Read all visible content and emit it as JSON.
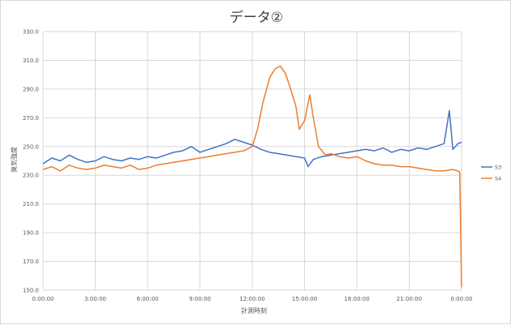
{
  "chart_data": {
    "type": "line",
    "title": "データ②",
    "xlabel": "計測時刻",
    "ylabel": "臭気強度",
    "ylim": [
      150.0,
      330.0
    ],
    "yticks": [
      "150.0",
      "170.0",
      "190.0",
      "210.0",
      "230.0",
      "250.0",
      "270.0",
      "290.0",
      "310.0",
      "330.0"
    ],
    "xlim": [
      0,
      24
    ],
    "xtick_labels": [
      "0:00:00",
      "3:00:00",
      "6:00:00",
      "9:00:00",
      "12:00:00",
      "15:00:00",
      "18:00:00",
      "21:00:00",
      "0:00:00"
    ],
    "grid": true,
    "legend_position": "right",
    "series": [
      {
        "name": "S3",
        "color": "#4472C4",
        "x": [
          0,
          0.5,
          1,
          1.5,
          2,
          2.5,
          3,
          3.5,
          4,
          4.5,
          5,
          5.5,
          6,
          6.5,
          7,
          7.5,
          8,
          8.5,
          9,
          9.5,
          10,
          10.5,
          11,
          11.5,
          12,
          12.5,
          13,
          13.5,
          14,
          14.5,
          15,
          15.2,
          15.5,
          16,
          16.5,
          17,
          17.5,
          18,
          18.5,
          19,
          19.5,
          20,
          20.5,
          21,
          21.5,
          22,
          22.5,
          23,
          23.3,
          23.5,
          23.8,
          24
        ],
        "y": [
          238,
          242,
          240,
          244,
          241,
          239,
          240,
          243,
          241,
          240,
          242,
          241,
          243,
          242,
          244,
          246,
          247,
          250,
          246,
          248,
          250,
          252,
          255,
          253,
          251,
          248,
          246,
          245,
          244,
          243,
          242,
          236,
          241,
          243,
          244,
          245,
          246,
          247,
          248,
          247,
          249,
          246,
          248,
          247,
          249,
          248,
          250,
          252,
          275,
          248,
          252,
          253
        ]
      },
      {
        "name": "S4",
        "color": "#ED7D31",
        "x": [
          0,
          0.5,
          1,
          1.5,
          2,
          2.5,
          3,
          3.5,
          4,
          4.5,
          5,
          5.5,
          6,
          6.5,
          7,
          7.5,
          8,
          8.5,
          9,
          9.5,
          10,
          10.5,
          11,
          11.5,
          12,
          12.3,
          12.6,
          13,
          13.3,
          13.6,
          13.9,
          14.2,
          14.5,
          14.7,
          15,
          15.3,
          15.5,
          15.8,
          16.2,
          16.5,
          17,
          17.5,
          18,
          18.5,
          19,
          19.5,
          20,
          20.5,
          21,
          21.5,
          22,
          22.5,
          23,
          23.5,
          23.8,
          23.9,
          24
        ],
        "y": [
          234,
          236,
          233,
          237,
          235,
          234,
          235,
          237,
          236,
          235,
          237,
          234,
          235,
          237,
          238,
          239,
          240,
          241,
          242,
          243,
          244,
          245,
          246,
          247,
          250,
          262,
          280,
          298,
          304,
          306,
          301,
          290,
          278,
          262,
          268,
          286,
          270,
          250,
          244,
          245,
          243,
          242,
          243,
          240,
          238,
          237,
          237,
          236,
          236,
          235,
          234,
          233,
          233,
          234,
          233,
          232,
          152
        ]
      }
    ]
  }
}
